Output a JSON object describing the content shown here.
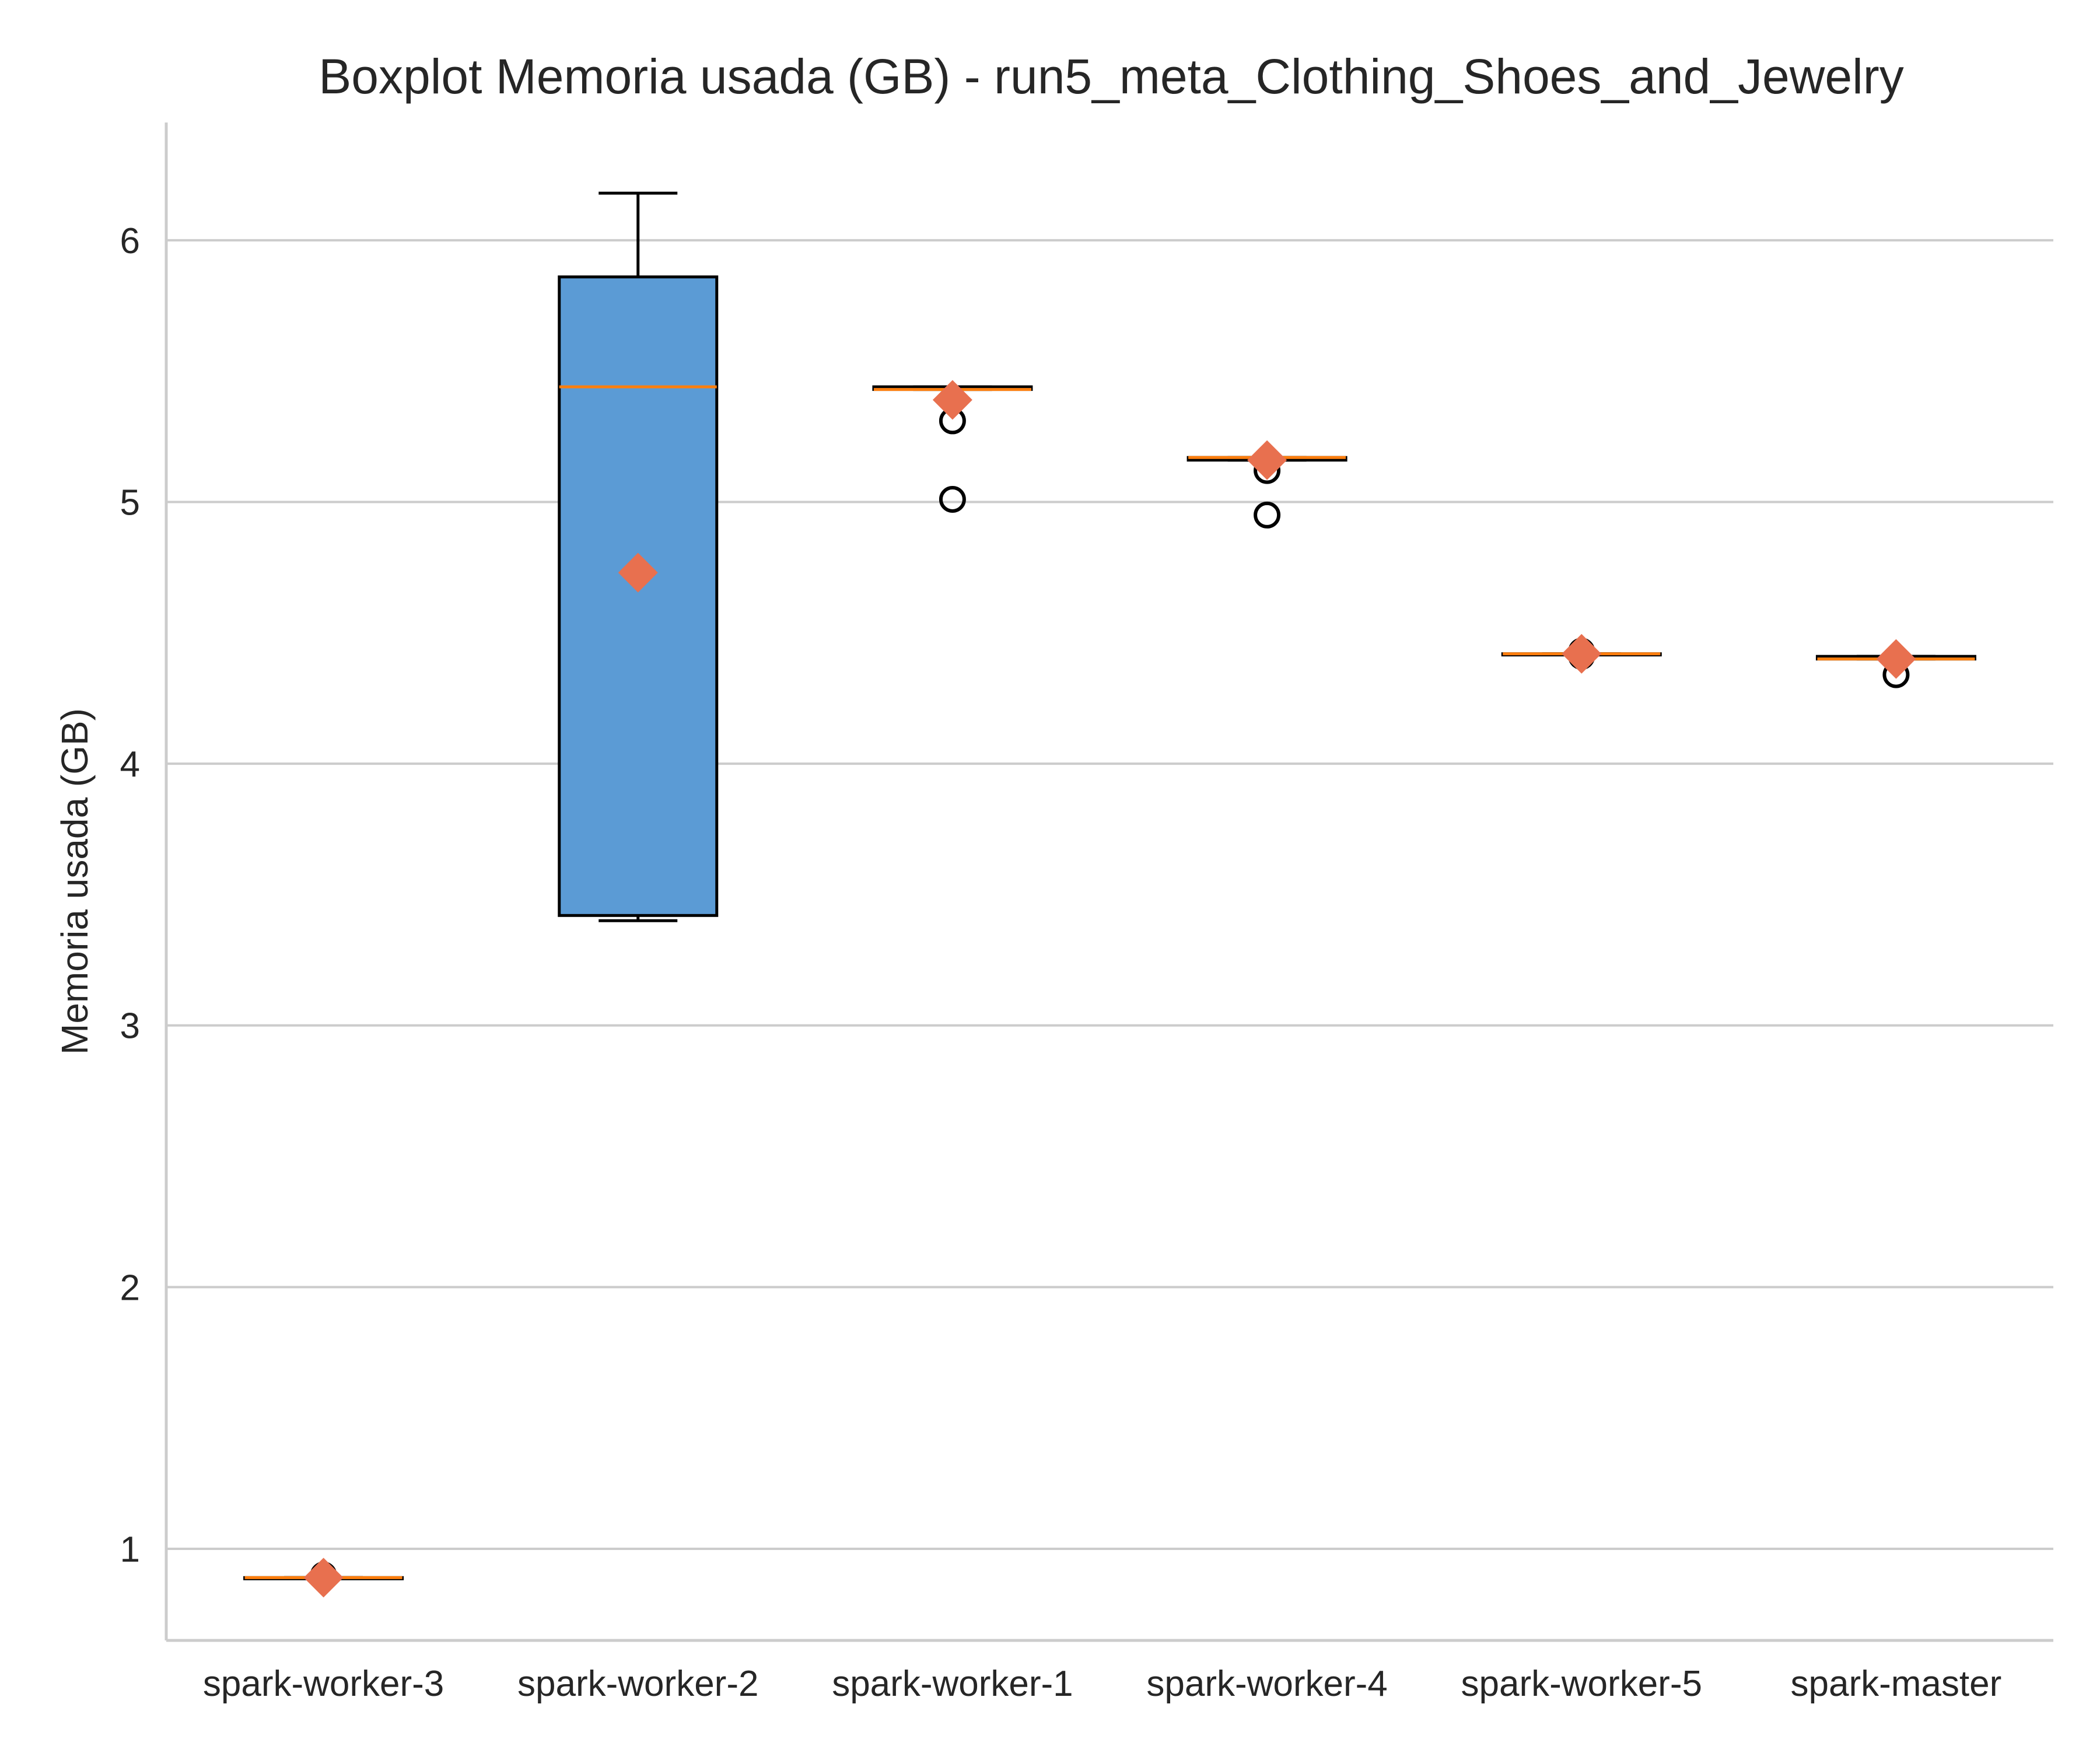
{
  "chart_data": {
    "type": "boxplot",
    "title": "Boxplot Memoria usada (GB) - run5_meta_Clothing_Shoes_and_Jewelry",
    "xlabel": "",
    "ylabel": "Memoria usada (GB)",
    "ylim": [
      0.65,
      6.45
    ],
    "yticks": [
      1,
      2,
      3,
      4,
      5,
      6
    ],
    "ytick_labels": [
      "1",
      "2",
      "3",
      "4",
      "5",
      "6"
    ],
    "grid": "horizontal",
    "legend": "none",
    "categories": [
      "spark-worker-3",
      "spark-worker-2",
      "spark-worker-1",
      "spark-worker-4",
      "spark-worker-5",
      "spark-master"
    ],
    "boxes": [
      {
        "category": "spark-worker-3",
        "whisker_low": 0.89,
        "q1": 0.89,
        "median": 0.89,
        "q3": 0.89,
        "whisker_high": 0.89,
        "mean": 0.89,
        "outliers": [
          0.9
        ],
        "filled": false
      },
      {
        "category": "spark-worker-2",
        "whisker_low": 3.4,
        "q1": 3.42,
        "median": 5.44,
        "q3": 5.86,
        "whisker_high": 6.18,
        "mean": 4.73,
        "outliers": [],
        "filled": true
      },
      {
        "category": "spark-worker-1",
        "whisker_low": 5.43,
        "q1": 5.43,
        "median": 5.43,
        "q3": 5.44,
        "whisker_high": 5.44,
        "mean": 5.39,
        "outliers": [
          5.31,
          5.01
        ],
        "filled": false
      },
      {
        "category": "spark-worker-4",
        "whisker_low": 5.16,
        "q1": 5.16,
        "median": 5.17,
        "q3": 5.17,
        "whisker_high": 5.17,
        "mean": 5.16,
        "outliers": [
          5.12,
          4.95
        ],
        "filled": false
      },
      {
        "category": "spark-worker-5",
        "whisker_low": 4.42,
        "q1": 4.42,
        "median": 4.42,
        "q3": 4.42,
        "whisker_high": 4.42,
        "mean": 4.42,
        "outliers": [
          4.41,
          4.43
        ],
        "filled": false
      },
      {
        "category": "spark-master",
        "whisker_low": 4.4,
        "q1": 4.4,
        "median": 4.4,
        "q3": 4.41,
        "whisker_high": 4.41,
        "mean": 4.4,
        "outliers": [
          4.34
        ],
        "filled": false
      }
    ],
    "colors": {
      "box_fill": "#5b9bd5",
      "box_edge": "#000000",
      "median": "#ff7f0e",
      "mean_marker": "#e8704f",
      "grid": "#cccccc",
      "spine": "#cccccc",
      "outlier_edge": "#000000"
    }
  }
}
